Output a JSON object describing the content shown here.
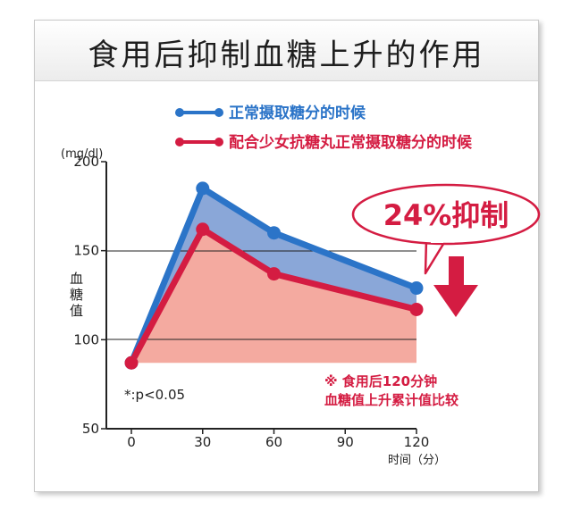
{
  "title": "食用后抑制血糖上升的作用",
  "legend": [
    {
      "label": "正常摄取糖分的时候",
      "color": "#2b74c8"
    },
    {
      "label": "配合少女抗糖丸正常摄取糖分的时候",
      "color": "#d41c42"
    }
  ],
  "yunit": "(mg/dl)",
  "ylabel": "血糖值",
  "xlabel": "时间（分）",
  "callout": "24%抑制",
  "footnote_left": "*:p<0.05",
  "footnote_right": [
    "※ 食用后120分钟",
    "血糖值上升累计值比较"
  ],
  "colors": {
    "blue": "#2b74c8",
    "red": "#d41c42",
    "blue_fill": "#8aa7d8",
    "red_fill": "#f4aaa0"
  },
  "chart_data": {
    "type": "line",
    "x": [
      0,
      30,
      60,
      90,
      120
    ],
    "xticks": [
      "0",
      "30",
      "60",
      "90",
      "120"
    ],
    "ylim": [
      50,
      200
    ],
    "yticks": [
      "50",
      "100",
      "150",
      "200"
    ],
    "xlabel": "时间（分）",
    "ylabel": "血糖值",
    "series": [
      {
        "name": "正常摄取糖分的时候",
        "x": [
          0,
          30,
          60,
          120
        ],
        "values": [
          87,
          185,
          160,
          129
        ]
      },
      {
        "name": "配合少女抗糖丸正常摄取糖分的时候",
        "x": [
          0,
          30,
          60,
          120
        ],
        "values": [
          87,
          162,
          137,
          117
        ]
      }
    ]
  }
}
